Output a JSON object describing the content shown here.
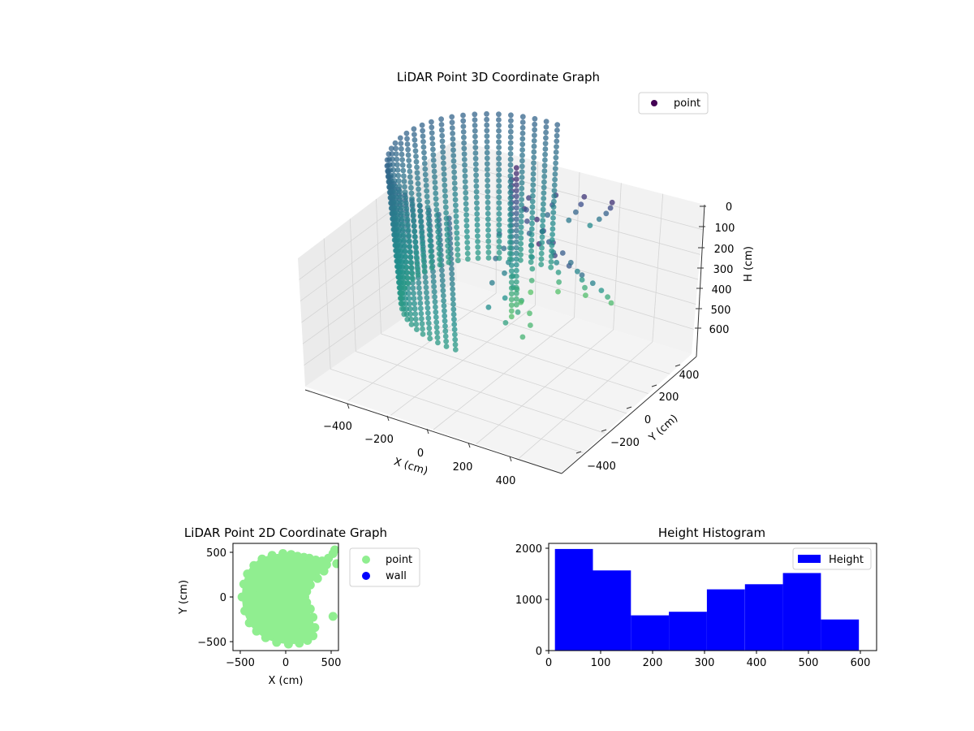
{
  "chart_data": [
    {
      "type": "scatter3d",
      "title": "LiDAR Point 3D Coordinate Graph",
      "xlabel": "X (cm)",
      "ylabel": "Y (cm)",
      "zlabel": "H (cm)",
      "xlim": [
        -600,
        600
      ],
      "ylim": [
        -600,
        600
      ],
      "zlim": [
        0,
        650
      ],
      "z_inverted": true,
      "x_ticks": [
        "−400",
        "−200",
        "0",
        "200",
        "400"
      ],
      "y_ticks": [
        "−400",
        "−200",
        "0",
        "200",
        "400"
      ],
      "z_ticks": [
        "0",
        "100",
        "200",
        "300",
        "400",
        "500",
        "600"
      ],
      "legend": [
        "point"
      ],
      "legend_position": "top-right",
      "colormap": "viridis",
      "grid": true,
      "series": [
        {
          "name": "point",
          "color": "#440154",
          "shape": "half-cylinder shell of radius ~480 cm spanning angles 90°–270° with a fan of sparse points toward +X",
          "radius": 480,
          "height_range": [
            0,
            620
          ]
        }
      ]
    },
    {
      "type": "scatter",
      "title": "LiDAR Point 2D Coordinate Graph",
      "xlabel": "X (cm)",
      "ylabel": "Y (cm)",
      "xlim": [
        -580,
        580
      ],
      "ylim": [
        -580,
        580
      ],
      "x_ticks": [
        "−500",
        "0",
        "500"
      ],
      "y_ticks": [
        "−500",
        "0",
        "500"
      ],
      "legend": [
        "point",
        "wall"
      ],
      "legend_position": "outside-right",
      "series": [
        {
          "name": "point",
          "color": "#90ee90",
          "points": [
            [
              -480,
              0
            ],
            [
              -460,
              140
            ],
            [
              -420,
              250
            ],
            [
              -350,
              340
            ],
            [
              -260,
              410
            ],
            [
              -150,
              450
            ],
            [
              -30,
              470
            ],
            [
              60,
              460
            ],
            [
              130,
              440
            ],
            [
              200,
              430
            ],
            [
              260,
              420
            ],
            [
              330,
              400
            ],
            [
              400,
              390
            ],
            [
              470,
              420
            ],
            [
              520,
              470
            ],
            [
              540,
              510
            ],
            [
              420,
              280
            ],
            [
              350,
              200
            ],
            [
              270,
              130
            ],
            [
              230,
              60
            ],
            [
              210,
              0
            ],
            [
              230,
              -60
            ],
            [
              270,
              -130
            ],
            [
              300,
              -220
            ],
            [
              320,
              -330
            ],
            [
              300,
              -420
            ],
            [
              240,
              -470
            ],
            [
              150,
              -500
            ],
            [
              30,
              -510
            ],
            [
              -100,
              -490
            ],
            [
              -220,
              -440
            ],
            [
              -320,
              -370
            ],
            [
              -400,
              -280
            ],
            [
              -450,
              -150
            ],
            [
              -200,
              0
            ],
            [
              -100,
              200
            ],
            [
              0,
              -200
            ],
            [
              100,
              250
            ],
            [
              100,
              -300
            ],
            [
              -300,
              100
            ],
            [
              -300,
              -100
            ],
            [
              0,
              0
            ],
            [
              -150,
              -300
            ],
            [
              80,
              330
            ],
            [
              180,
              -380
            ],
            [
              520,
              -210
            ],
            [
              560,
              360
            ],
            [
              450,
              350
            ],
            [
              380,
              320
            ]
          ]
        },
        {
          "name": "wall",
          "color": "#0000ff",
          "points": []
        }
      ]
    },
    {
      "type": "bar",
      "title": "Height Histogram",
      "xlabel": "",
      "ylabel": "",
      "xlim": [
        0,
        630
      ],
      "ylim": [
        0,
        2100
      ],
      "x_ticks": [
        "0",
        "100",
        "200",
        "300",
        "400",
        "500",
        "600"
      ],
      "y_ticks": [
        "0",
        "1000",
        "2000"
      ],
      "legend": [
        "Height"
      ],
      "legend_position": "top-right",
      "bins": [
        [
          12,
          85
        ],
        [
          85,
          158
        ],
        [
          158,
          231
        ],
        [
          231,
          304
        ],
        [
          304,
          377
        ],
        [
          377,
          450
        ],
        [
          450,
          523
        ],
        [
          523,
          596
        ]
      ],
      "values": [
        1990,
        1570,
        690,
        760,
        1200,
        1300,
        1520,
        610
      ],
      "series": [
        {
          "name": "Height",
          "color": "#0000ff"
        }
      ]
    }
  ]
}
